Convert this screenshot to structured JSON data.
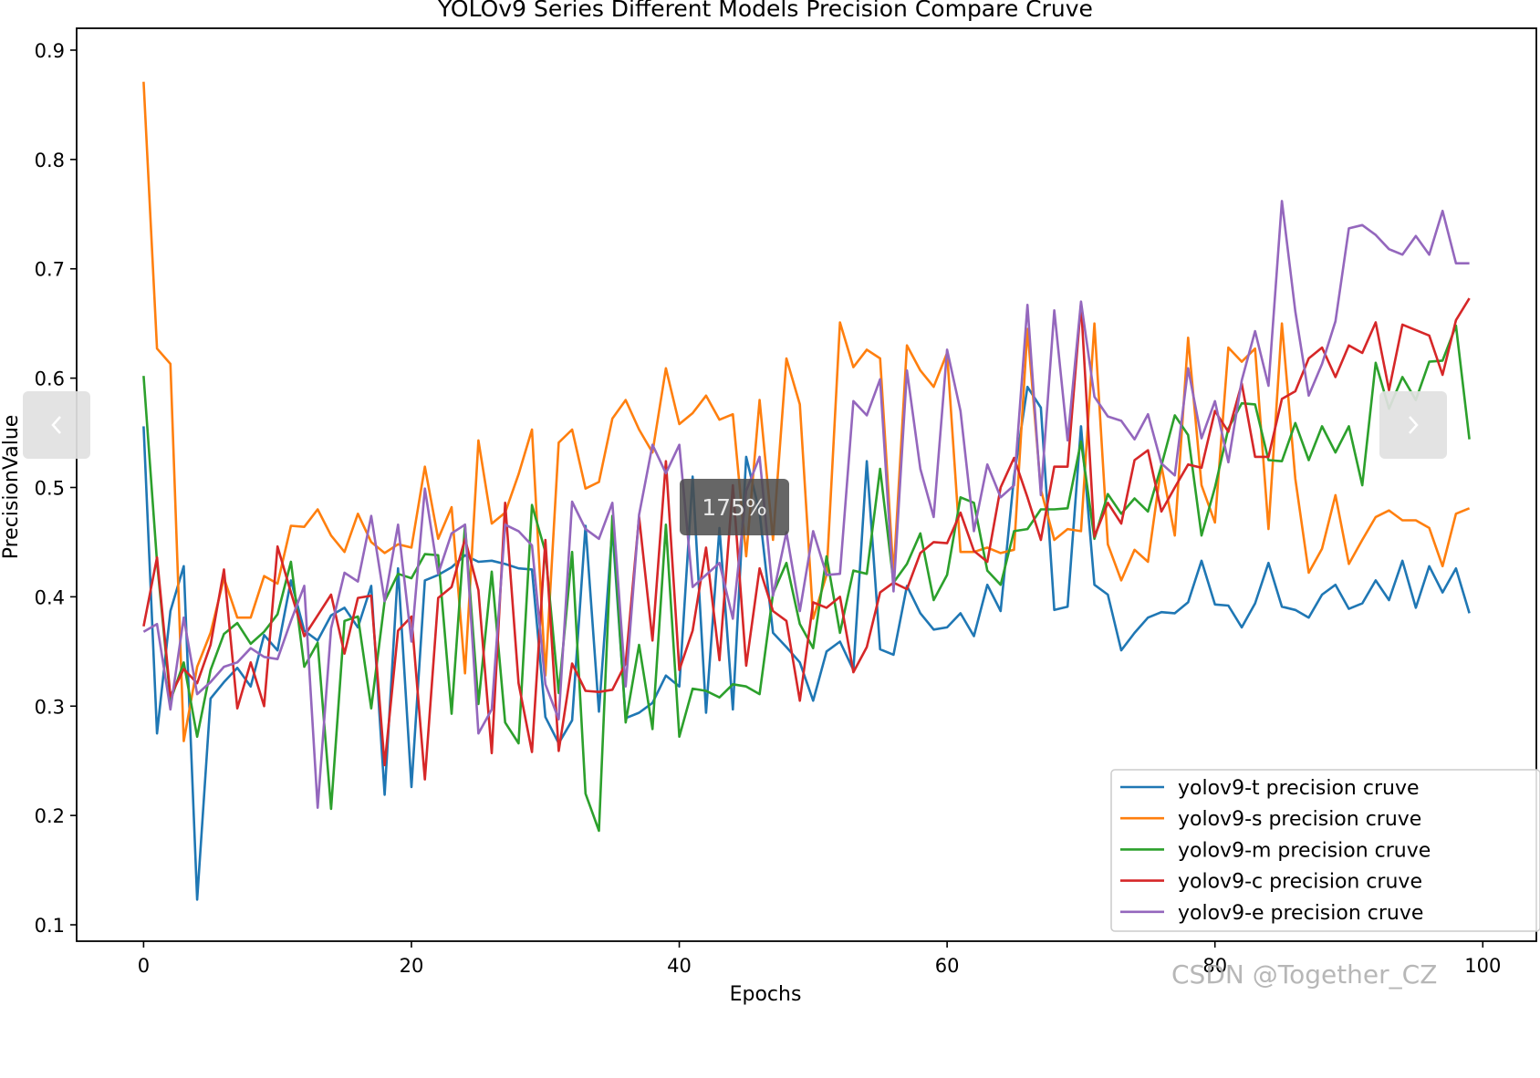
{
  "viewer": {
    "zoom_label": "175%",
    "prev_icon": "chevron-left-icon",
    "next_icon": "chevron-right-icon",
    "watermark": "CSDN @Together_CZ"
  },
  "chart_data": {
    "type": "line",
    "title": "YOLOv9 Series Different Models Precision Compare Cruve",
    "xlabel": "Epochs",
    "ylabel": "PrecisionValue",
    "xlim": [
      -5,
      104
    ],
    "ylim": [
      0.085,
      0.92
    ],
    "xticks": [
      0,
      20,
      40,
      60,
      80,
      100
    ],
    "yticks": [
      0.1,
      0.2,
      0.3,
      0.4,
      0.5,
      0.6,
      0.7,
      0.8,
      0.9
    ],
    "grid": false,
    "legend_position": "lower-right",
    "series": [
      {
        "name": "yolov9-t precision cruve",
        "color": "#1f77b4",
        "values": [
          0.556,
          0.275,
          0.387,
          0.428,
          0.123,
          0.307,
          0.322,
          0.335,
          0.318,
          0.365,
          0.351,
          0.415,
          0.369,
          0.36,
          0.383,
          0.39,
          0.372,
          0.41,
          0.219,
          0.426,
          0.226,
          0.415,
          0.42,
          0.427,
          0.438,
          0.432,
          0.433,
          0.43,
          0.426,
          0.425,
          0.29,
          0.266,
          0.287,
          0.465,
          0.295,
          0.463,
          0.289,
          0.294,
          0.303,
          0.328,
          0.318,
          0.51,
          0.294,
          0.463,
          0.297,
          0.528,
          0.477,
          0.367,
          0.354,
          0.34,
          0.305,
          0.35,
          0.359,
          0.333,
          0.524,
          0.352,
          0.347,
          0.41,
          0.385,
          0.37,
          0.372,
          0.385,
          0.364,
          0.411,
          0.387,
          0.51,
          0.592,
          0.573,
          0.388,
          0.391,
          0.556,
          0.411,
          0.402,
          0.351,
          0.367,
          0.381,
          0.386,
          0.385,
          0.395,
          0.433,
          0.393,
          0.392,
          0.372,
          0.394,
          0.431,
          0.391,
          0.388,
          0.381,
          0.402,
          0.411,
          0.389,
          0.394,
          0.415,
          0.397,
          0.433,
          0.39,
          0.428,
          0.404,
          0.426,
          0.385
        ]
      },
      {
        "name": "yolov9-s precision cruve",
        "color": "#ff7f0e",
        "values": [
          0.871,
          0.627,
          0.613,
          0.268,
          0.336,
          0.367,
          0.417,
          0.381,
          0.381,
          0.419,
          0.412,
          0.465,
          0.464,
          0.48,
          0.456,
          0.441,
          0.476,
          0.45,
          0.44,
          0.448,
          0.445,
          0.519,
          0.453,
          0.482,
          0.33,
          0.543,
          0.467,
          0.477,
          0.512,
          0.553,
          0.328,
          0.541,
          0.553,
          0.499,
          0.505,
          0.563,
          0.58,
          0.553,
          0.532,
          0.609,
          0.558,
          0.568,
          0.584,
          0.562,
          0.567,
          0.437,
          0.58,
          0.452,
          0.618,
          0.576,
          0.38,
          0.42,
          0.651,
          0.61,
          0.626,
          0.618,
          0.42,
          0.63,
          0.607,
          0.592,
          0.623,
          0.441,
          0.441,
          0.445,
          0.44,
          0.443,
          0.645,
          0.498,
          0.452,
          0.462,
          0.46,
          0.65,
          0.448,
          0.415,
          0.443,
          0.432,
          0.52,
          0.456,
          0.637,
          0.502,
          0.468,
          0.628,
          0.615,
          0.627,
          0.462,
          0.65,
          0.508,
          0.422,
          0.444,
          0.493,
          0.43,
          0.452,
          0.473,
          0.479,
          0.47,
          0.47,
          0.463,
          0.428,
          0.476,
          0.481
        ]
      },
      {
        "name": "yolov9-m precision cruve",
        "color": "#2ca02c",
        "values": [
          0.602,
          0.432,
          0.305,
          0.34,
          0.272,
          0.333,
          0.366,
          0.376,
          0.357,
          0.368,
          0.384,
          0.432,
          0.336,
          0.358,
          0.206,
          0.378,
          0.382,
          0.298,
          0.396,
          0.421,
          0.417,
          0.439,
          0.438,
          0.293,
          0.466,
          0.302,
          0.423,
          0.285,
          0.266,
          0.484,
          0.441,
          0.312,
          0.441,
          0.22,
          0.186,
          0.474,
          0.285,
          0.356,
          0.279,
          0.466,
          0.272,
          0.316,
          0.314,
          0.308,
          0.32,
          0.318,
          0.311,
          0.403,
          0.431,
          0.375,
          0.353,
          0.437,
          0.367,
          0.424,
          0.421,
          0.517,
          0.413,
          0.43,
          0.458,
          0.397,
          0.42,
          0.491,
          0.486,
          0.424,
          0.411,
          0.46,
          0.462,
          0.48,
          0.48,
          0.481,
          0.542,
          0.453,
          0.494,
          0.476,
          0.49,
          0.478,
          0.52,
          0.566,
          0.548,
          0.456,
          0.5,
          0.554,
          0.577,
          0.576,
          0.525,
          0.524,
          0.559,
          0.525,
          0.556,
          0.532,
          0.556,
          0.502,
          0.614,
          0.572,
          0.601,
          0.58,
          0.615,
          0.616,
          0.648,
          0.544
        ]
      },
      {
        "name": "yolov9-c precision cruve",
        "color": "#d62728",
        "values": [
          0.373,
          0.436,
          0.309,
          0.334,
          0.321,
          0.356,
          0.425,
          0.298,
          0.34,
          0.3,
          0.446,
          0.404,
          0.364,
          0.383,
          0.402,
          0.348,
          0.399,
          0.401,
          0.246,
          0.369,
          0.382,
          0.233,
          0.399,
          0.409,
          0.453,
          0.406,
          0.257,
          0.486,
          0.321,
          0.258,
          0.452,
          0.259,
          0.339,
          0.314,
          0.313,
          0.315,
          0.339,
          0.473,
          0.36,
          0.524,
          0.333,
          0.369,
          0.445,
          0.342,
          0.502,
          0.337,
          0.426,
          0.387,
          0.378,
          0.305,
          0.395,
          0.39,
          0.4,
          0.331,
          0.354,
          0.404,
          0.413,
          0.407,
          0.44,
          0.45,
          0.449,
          0.477,
          0.442,
          0.432,
          0.5,
          0.527,
          0.491,
          0.452,
          0.519,
          0.519,
          0.668,
          0.455,
          0.486,
          0.467,
          0.525,
          0.534,
          0.478,
          0.5,
          0.521,
          0.518,
          0.57,
          0.551,
          0.595,
          0.528,
          0.528,
          0.581,
          0.588,
          0.618,
          0.628,
          0.601,
          0.63,
          0.623,
          0.651,
          0.589,
          0.649,
          0.644,
          0.639,
          0.603,
          0.653,
          0.673
        ]
      },
      {
        "name": "yolov9-e precision cruve",
        "color": "#9467bd",
        "values": [
          0.368,
          0.375,
          0.297,
          0.381,
          0.311,
          0.322,
          0.336,
          0.34,
          0.353,
          0.345,
          0.343,
          0.378,
          0.41,
          0.207,
          0.371,
          0.422,
          0.414,
          0.474,
          0.396,
          0.466,
          0.359,
          0.499,
          0.421,
          0.458,
          0.466,
          0.275,
          0.297,
          0.466,
          0.46,
          0.447,
          0.32,
          0.288,
          0.487,
          0.462,
          0.453,
          0.486,
          0.318,
          0.475,
          0.539,
          0.513,
          0.539,
          0.409,
          0.42,
          0.431,
          0.38,
          0.497,
          0.528,
          0.401,
          0.459,
          0.387,
          0.46,
          0.42,
          0.421,
          0.579,
          0.566,
          0.599,
          0.405,
          0.607,
          0.517,
          0.473,
          0.626,
          0.57,
          0.46,
          0.521,
          0.491,
          0.502,
          0.667,
          0.493,
          0.662,
          0.543,
          0.67,
          0.583,
          0.565,
          0.561,
          0.544,
          0.567,
          0.522,
          0.511,
          0.609,
          0.545,
          0.579,
          0.523,
          0.598,
          0.643,
          0.593,
          0.762,
          0.661,
          0.584,
          0.613,
          0.652,
          0.737,
          0.74,
          0.731,
          0.718,
          0.713,
          0.73,
          0.713,
          0.753,
          0.705,
          0.705
        ]
      }
    ]
  }
}
